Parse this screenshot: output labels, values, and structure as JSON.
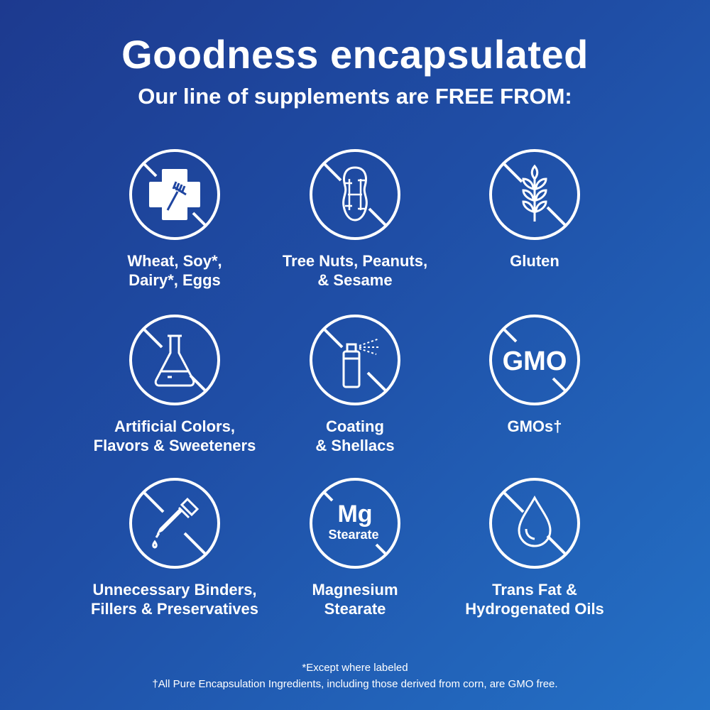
{
  "title": "Goodness encapsulated",
  "subtitle": "Our line of supplements are FREE FROM:",
  "items": [
    {
      "icon": "no-allergen-cross-fork-icon",
      "lines": [
        "Wheat, Soy*,",
        "Dairy*, Eggs"
      ]
    },
    {
      "icon": "no-peanut-icon",
      "lines": [
        "Tree Nuts, Peanuts,",
        "& Sesame"
      ]
    },
    {
      "icon": "no-wheat-grain-icon",
      "lines": [
        "Gluten",
        ""
      ]
    },
    {
      "icon": "no-flask-icon",
      "lines": [
        "Artificial Colors,",
        "Flavors & Sweeteners"
      ]
    },
    {
      "icon": "no-spray-can-icon",
      "lines": [
        "Coating",
        "& Shellacs"
      ]
    },
    {
      "icon": "no-gmo-icon",
      "icon_text": "GMO",
      "lines": [
        "GMOs†",
        ""
      ]
    },
    {
      "icon": "no-dropper-icon",
      "lines": [
        "Unnecessary Binders,",
        "Fillers & Preservatives"
      ]
    },
    {
      "icon": "no-mg-stearate-icon",
      "icon_text": "Mg",
      "icon_subtext": "Stearate",
      "lines": [
        "Magnesium",
        "Stearate"
      ]
    },
    {
      "icon": "no-oil-drop-icon",
      "lines": [
        "Trans Fat &",
        "Hydrogenated Oils"
      ]
    }
  ],
  "footnotes": [
    "*Except where labeled",
    "†All Pure Encapsulation Ingredients, including those derived from corn, are GMO free."
  ],
  "colors": {
    "background_start": "#1d3a8f",
    "background_end": "#2471c6",
    "foreground": "#ffffff"
  }
}
